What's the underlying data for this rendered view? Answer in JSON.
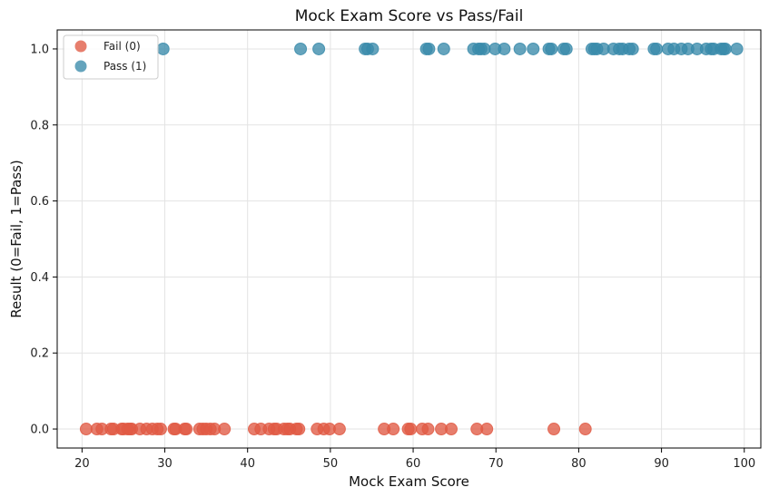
{
  "chart_data": {
    "type": "scatter",
    "title": "Mock Exam Score vs Pass/Fail",
    "xlabel": "Mock Exam Score",
    "ylabel": "Result (0=Fail, 1=Pass)",
    "xlim": [
      17,
      102
    ],
    "ylim": [
      -0.05,
      1.05
    ],
    "xticks": [
      20,
      30,
      40,
      50,
      60,
      70,
      80,
      90,
      100
    ],
    "yticks": [
      0.0,
      0.2,
      0.4,
      0.6,
      0.8,
      1.0
    ],
    "xtick_labels": [
      "20",
      "30",
      "40",
      "50",
      "60",
      "70",
      "80",
      "90",
      "100"
    ],
    "ytick_labels": [
      "0.0",
      "0.2",
      "0.4",
      "0.6",
      "0.8",
      "1.0"
    ],
    "grid": true,
    "legend_position": "top-left",
    "series": [
      {
        "name": "Fail (0)",
        "color": "#e05a44",
        "y": 0,
        "x": [
          20.5,
          21.8,
          22.4,
          23.5,
          23.8,
          24.8,
          25.0,
          25.5,
          25.8,
          26.0,
          27.0,
          27.8,
          28.5,
          29.1,
          29.5,
          31.1,
          31.3,
          32.4,
          32.6,
          34.2,
          34.6,
          35.0,
          35.5,
          36.0,
          37.2,
          40.8,
          41.6,
          42.6,
          43.2,
          43.5,
          44.4,
          44.8,
          45.1,
          45.9,
          46.2,
          48.4,
          49.2,
          49.9,
          51.1,
          56.5,
          57.6,
          59.4,
          59.7,
          61.1,
          61.8,
          63.4,
          64.6,
          67.7,
          68.9,
          77.0,
          80.8
        ]
      },
      {
        "name": "Pass (1)",
        "color": "#3a8baa",
        "y": 1,
        "x": [
          29.8,
          46.4,
          48.6,
          54.2,
          54.5,
          55.1,
          61.6,
          61.9,
          63.7,
          67.3,
          67.9,
          68.2,
          68.6,
          69.9,
          71.0,
          72.9,
          74.5,
          76.4,
          76.7,
          78.2,
          78.5,
          81.6,
          81.9,
          82.2,
          83.0,
          84.2,
          84.9,
          85.3,
          86.1,
          86.5,
          89.1,
          89.4,
          90.8,
          91.5,
          92.4,
          93.2,
          94.3,
          95.4,
          96.0,
          96.3,
          97.2,
          97.5,
          97.7,
          99.1
        ]
      }
    ]
  }
}
